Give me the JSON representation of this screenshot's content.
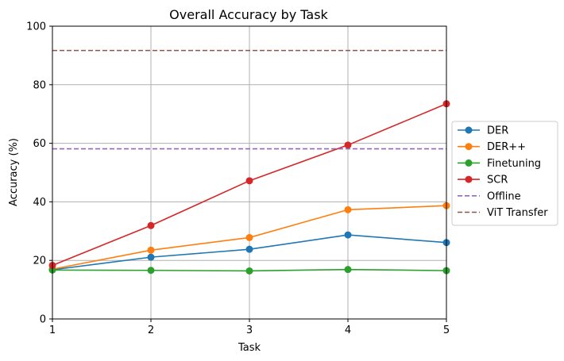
{
  "chart_data": {
    "type": "line",
    "title": "Overall Accuracy by Task",
    "xlabel": "Task",
    "ylabel": "Accuracy (%)",
    "x": [
      1,
      2,
      3,
      4,
      5
    ],
    "xlim": [
      1,
      5
    ],
    "ylim": [
      0,
      100
    ],
    "xticks": [
      1,
      2,
      3,
      4,
      5
    ],
    "yticks": [
      0,
      20,
      40,
      60,
      80,
      100
    ],
    "grid": true,
    "legend_position": "center-right, outside",
    "series": [
      {
        "name": "DER",
        "color": "#1f77b4",
        "style": "solid",
        "marker": "circle",
        "values": [
          16.8,
          21.1,
          23.8,
          28.7,
          26.1
        ]
      },
      {
        "name": "DER++",
        "color": "#ff7f0e",
        "style": "solid",
        "marker": "circle",
        "values": [
          17.0,
          23.5,
          27.8,
          37.3,
          38.7
        ]
      },
      {
        "name": "Finetuning",
        "color": "#2ca02c",
        "style": "solid",
        "marker": "circle",
        "values": [
          16.7,
          16.6,
          16.4,
          16.9,
          16.5
        ]
      },
      {
        "name": "SCR",
        "color": "#d62728",
        "style": "solid",
        "marker": "circle",
        "values": [
          18.3,
          31.9,
          47.2,
          59.4,
          73.5
        ]
      },
      {
        "name": "Offline",
        "color": "#9467bd",
        "style": "dashed",
        "marker": "none",
        "values": [
          58.1,
          58.1,
          58.1,
          58.1,
          58.1
        ]
      },
      {
        "name": "ViT Transfer",
        "color": "#8c564b",
        "style": "dashed",
        "marker": "none",
        "values": [
          91.7,
          91.7,
          91.7,
          91.7,
          91.7
        ]
      }
    ]
  }
}
